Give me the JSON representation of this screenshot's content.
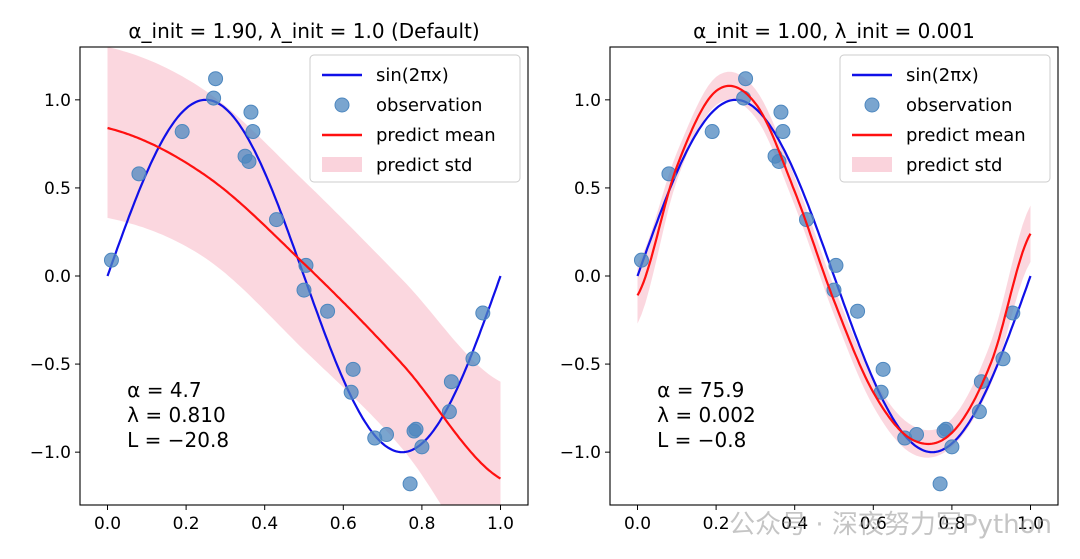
{
  "watermark": "公众号 · 深夜努力写Python",
  "chart_data": [
    {
      "type": "line",
      "title": "α_init = 1.90,  λ_init = 1.0 (Default)",
      "xlim": [
        -0.07,
        1.07
      ],
      "ylim": [
        -1.3,
        1.3
      ],
      "xticks": [
        0.0,
        0.2,
        0.4,
        0.6,
        0.8,
        1.0
      ],
      "yticks": [
        -1.0,
        -0.5,
        0.0,
        0.5,
        1.0
      ],
      "xtick_labels": [
        "0.0",
        "0.2",
        "0.4",
        "0.6",
        "0.8",
        "1.0"
      ],
      "ytick_labels": [
        "−1.0",
        "−0.5",
        "0.0",
        "0.5",
        "1.0"
      ],
      "legend_position": "top-right",
      "legend": [
        "sin(2πx)",
        "observation",
        "predict mean",
        "predict std"
      ],
      "annotation": [
        "α = 4.7",
        "λ = 0.810",
        "L = −20.8"
      ],
      "true_function": "sin(2πx)",
      "observations": [
        [
          0.01,
          0.09
        ],
        [
          0.08,
          0.58
        ],
        [
          0.19,
          0.82
        ],
        [
          0.27,
          1.01
        ],
        [
          0.275,
          1.12
        ],
        [
          0.35,
          0.68
        ],
        [
          0.36,
          0.65
        ],
        [
          0.365,
          0.93
        ],
        [
          0.37,
          0.82
        ],
        [
          0.43,
          0.32
        ],
        [
          0.5,
          -0.08
        ],
        [
          0.505,
          0.06
        ],
        [
          0.56,
          -0.2
        ],
        [
          0.62,
          -0.66
        ],
        [
          0.625,
          -0.53
        ],
        [
          0.68,
          -0.92
        ],
        [
          0.71,
          -0.9
        ],
        [
          0.77,
          -1.18
        ],
        [
          0.78,
          -0.88
        ],
        [
          0.785,
          -0.87
        ],
        [
          0.8,
          -0.97
        ],
        [
          0.87,
          -0.77
        ],
        [
          0.875,
          -0.6
        ],
        [
          0.93,
          -0.47
        ],
        [
          0.955,
          -0.21
        ]
      ],
      "predict_mean": {
        "x": [
          0,
          0.25,
          0.5,
          0.75,
          1.0
        ],
        "y": [
          0.84,
          0.57,
          0.07,
          -0.5,
          -1.15
        ]
      },
      "predict_std_band": {
        "x": [
          0,
          0.25,
          0.5,
          0.75,
          1.0
        ],
        "upper": [
          1.3,
          1.05,
          0.54,
          -0.02,
          -0.6
        ],
        "lower": [
          0.33,
          0.1,
          -0.42,
          -0.98,
          -1.73
        ]
      },
      "colors": {
        "true": "#1010e8",
        "observation": "#4d87bf",
        "mean": "#ff1010",
        "band": "#f7b6c4"
      }
    },
    {
      "type": "line",
      "title": "α_init = 1.00,  λ_init = 0.001",
      "xlim": [
        -0.07,
        1.07
      ],
      "ylim": [
        -1.3,
        1.3
      ],
      "xticks": [
        0.0,
        0.2,
        0.4,
        0.6,
        0.8,
        1.0
      ],
      "yticks": [
        -1.0,
        -0.5,
        0.0,
        0.5,
        1.0
      ],
      "xtick_labels": [
        "0.0",
        "0.2",
        "0.4",
        "0.6",
        "0.8",
        "1.0"
      ],
      "ytick_labels": [
        "−1.0",
        "−0.5",
        "0.0",
        "0.5",
        "1.0"
      ],
      "legend_position": "top-right",
      "legend": [
        "sin(2πx)",
        "observation",
        "predict mean",
        "predict std"
      ],
      "annotation": [
        "α = 75.9",
        "λ = 0.002",
        "L = −0.8"
      ],
      "true_function": "sin(2πx)",
      "observations": [
        [
          0.01,
          0.09
        ],
        [
          0.08,
          0.58
        ],
        [
          0.19,
          0.82
        ],
        [
          0.27,
          1.01
        ],
        [
          0.275,
          1.12
        ],
        [
          0.35,
          0.68
        ],
        [
          0.36,
          0.65
        ],
        [
          0.365,
          0.93
        ],
        [
          0.37,
          0.82
        ],
        [
          0.43,
          0.32
        ],
        [
          0.5,
          -0.08
        ],
        [
          0.505,
          0.06
        ],
        [
          0.56,
          -0.2
        ],
        [
          0.62,
          -0.66
        ],
        [
          0.625,
          -0.53
        ],
        [
          0.68,
          -0.92
        ],
        [
          0.71,
          -0.9
        ],
        [
          0.77,
          -1.18
        ],
        [
          0.78,
          -0.88
        ],
        [
          0.785,
          -0.87
        ],
        [
          0.8,
          -0.97
        ],
        [
          0.87,
          -0.77
        ],
        [
          0.875,
          -0.6
        ],
        [
          0.93,
          -0.47
        ],
        [
          0.955,
          -0.21
        ]
      ],
      "predict_mean": {
        "x": [
          0,
          0.1,
          0.2,
          0.3,
          0.4,
          0.5,
          0.6,
          0.7,
          0.8,
          0.9,
          1.0
        ],
        "y": [
          -0.11,
          0.62,
          1.05,
          0.98,
          0.48,
          -0.14,
          -0.66,
          -0.93,
          -0.89,
          -0.49,
          0.24
        ]
      },
      "predict_std_band": {
        "x": [
          0,
          0.1,
          0.2,
          0.3,
          0.4,
          0.5,
          0.6,
          0.7,
          0.8,
          0.9,
          1.0
        ],
        "upper": [
          0.07,
          0.7,
          1.13,
          1.06,
          0.56,
          -0.06,
          -0.58,
          -0.85,
          -0.81,
          -0.37,
          0.4
        ],
        "lower": [
          -0.27,
          0.54,
          0.97,
          0.9,
          0.4,
          -0.22,
          -0.74,
          -1.01,
          -0.97,
          -0.61,
          0.08
        ]
      },
      "colors": {
        "true": "#1010e8",
        "observation": "#4d87bf",
        "mean": "#ff1010",
        "band": "#f7b6c4"
      }
    }
  ]
}
